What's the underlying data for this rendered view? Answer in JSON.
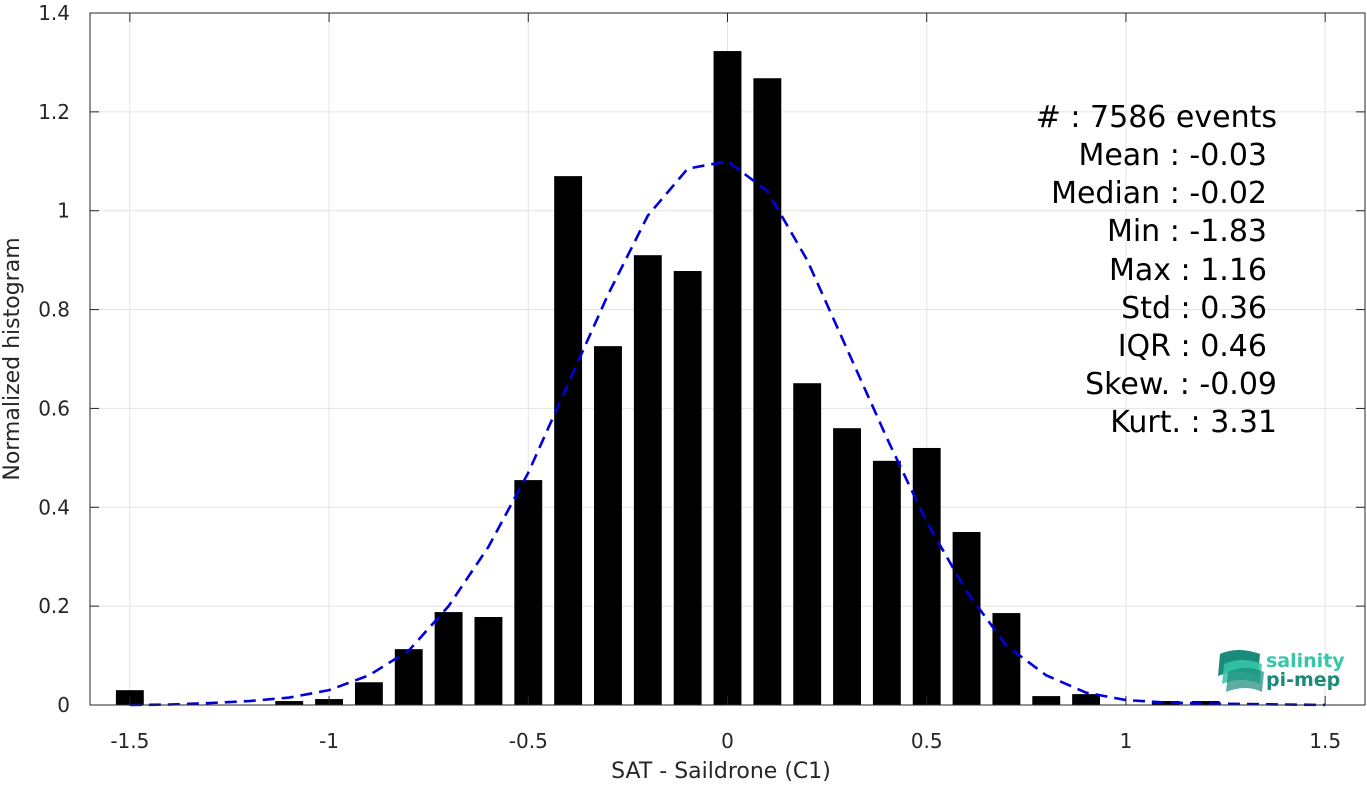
{
  "chart_data": {
    "type": "bar",
    "xlabel": "SAT - Saildrone (C1)",
    "ylabel": "Normalized histogram",
    "xlim": [
      -1.6,
      1.6
    ],
    "ylim": [
      0,
      1.4
    ],
    "grid": true,
    "x_ticks": [
      -1.5,
      -1,
      -0.5,
      0,
      0.5,
      1,
      1.5
    ],
    "x_tick_labels": [
      "-1.5",
      "-1",
      "-0.5",
      "0",
      "0.5",
      "1",
      "1.5"
    ],
    "y_ticks": [
      0,
      0.2,
      0.4,
      0.6,
      0.8,
      1,
      1.2,
      1.4
    ],
    "y_tick_labels": [
      "0",
      "0.2",
      "0.4",
      "0.6",
      "0.8",
      "1",
      "1.2",
      "1.4"
    ],
    "bar_width": 0.07,
    "bars": {
      "x": [
        -1.5,
        -1.1,
        -1.0,
        -0.9,
        -0.8,
        -0.7,
        -0.6,
        -0.5,
        -0.4,
        -0.3,
        -0.2,
        -0.1,
        0.0,
        0.1,
        0.2,
        0.3,
        0.4,
        0.5,
        0.6,
        0.7,
        0.8,
        0.9,
        1.1,
        1.2
      ],
      "values": [
        0.03,
        0.008,
        0.012,
        0.046,
        0.113,
        0.188,
        0.178,
        0.455,
        1.07,
        0.726,
        0.91,
        0.878,
        1.323,
        1.268,
        0.651,
        0.56,
        0.494,
        0.52,
        0.35,
        0.186,
        0.018,
        0.022,
        0.008,
        0.008
      ],
      "color": "#000000"
    },
    "fit_curve": {
      "style": "dashed",
      "color": "#0000dd",
      "x": [
        -1.5,
        -1.4,
        -1.3,
        -1.2,
        -1.1,
        -1.0,
        -0.9,
        -0.8,
        -0.7,
        -0.6,
        -0.5,
        -0.4,
        -0.3,
        -0.2,
        -0.1,
        0.0,
        0.1,
        0.2,
        0.3,
        0.4,
        0.5,
        0.6,
        0.7,
        0.8,
        0.9,
        1.0,
        1.1,
        1.2,
        1.3,
        1.4,
        1.5
      ],
      "values": [
        0.0,
        0.001,
        0.004,
        0.008,
        0.015,
        0.03,
        0.06,
        0.11,
        0.2,
        0.32,
        0.47,
        0.65,
        0.83,
        0.99,
        1.085,
        1.1,
        1.04,
        0.9,
        0.72,
        0.54,
        0.37,
        0.23,
        0.12,
        0.06,
        0.025,
        0.01,
        0.005,
        0.003,
        0.002,
        0.001,
        0.0
      ]
    },
    "stats": [
      "#  : 7586 events",
      "Mean : -0.03",
      "Median : -0.02",
      "Min : -1.83",
      "Max : 1.16",
      "Std : 0.36",
      "IQR : 0.46",
      "Skew. : -0.09",
      "Kurt. : 3.31"
    ]
  },
  "logo": {
    "line1": "salinity",
    "line2": "pi-mep",
    "color_dark": "#1a8a7a",
    "color_light": "#36c7a8"
  }
}
